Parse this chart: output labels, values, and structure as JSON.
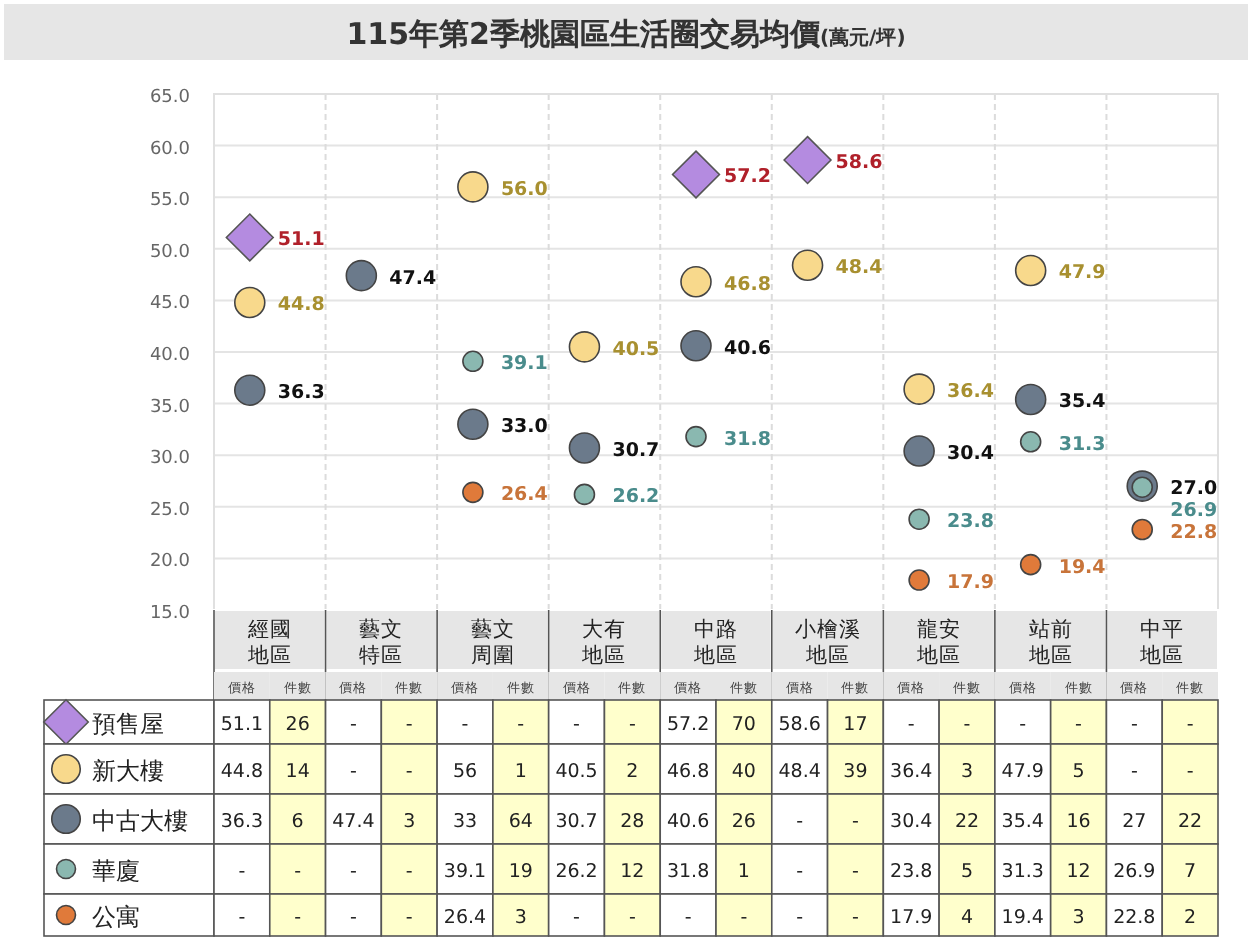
{
  "chart_data": [
    {
      "type": "scatter",
      "title": "115年第2季桃園區生活圈交易均價",
      "subtitle": "(萬元/坪)",
      "categories": [
        "經國地區",
        "藝文特區",
        "藝文周圍",
        "大有地區",
        "中路地區",
        "小檜溪地區",
        "龍安地區",
        "站前地區",
        "中平地區"
      ],
      "series": [
        {
          "color": "#b48be0",
          "marker": "diamond",
          "values": [
            51.1,
            null,
            null,
            null,
            57.2,
            58.6,
            null,
            null,
            null
          ],
          "value_labels": [
            "51.1",
            null,
            null,
            null,
            "57.2",
            "58.6",
            null,
            null,
            null
          ]
        },
        {
          "color": "#f8d98c",
          "marker": "circle",
          "values": [
            44.8,
            null,
            56.0,
            40.5,
            46.8,
            48.4,
            36.4,
            47.9,
            null
          ],
          "value_labels": [
            "44.8",
            null,
            "56.0",
            "40.5",
            "46.8",
            "48.4",
            "36.4",
            "47.9",
            null
          ]
        },
        {
          "color": "#6b7a8b",
          "marker": "circle",
          "values": [
            36.3,
            47.4,
            33.0,
            30.7,
            40.6,
            null,
            30.4,
            35.4,
            27.0
          ],
          "value_labels": [
            "36.3",
            "47.4",
            "33.0",
            "30.7",
            "40.6",
            null,
            "30.4",
            "35.4",
            "27.0"
          ]
        },
        {
          "color": "#8ab8b0",
          "marker": "circle",
          "values": [
            null,
            null,
            39.1,
            26.2,
            31.8,
            null,
            23.8,
            31.3,
            26.9
          ],
          "value_labels": [
            null,
            null,
            "39.1",
            "26.2",
            "31.8",
            null,
            "23.8",
            "31.3",
            "26.9"
          ]
        },
        {
          "color": "#e07a3a",
          "marker": "circle",
          "values": [
            null,
            null,
            26.4,
            null,
            null,
            null,
            17.9,
            19.4,
            22.8
          ],
          "value_labels": [
            null,
            null,
            "26.4",
            null,
            null,
            null,
            "17.9",
            "19.4",
            "22.8"
          ]
        }
      ],
      "ylim": [
        15,
        65
      ],
      "yticks": [
        {
          "value": 15,
          "label": "15.0"
        },
        {
          "value": 20,
          "label": "20.0"
        },
        {
          "value": 25,
          "label": "25.0"
        },
        {
          "value": 30,
          "label": "30.0"
        },
        {
          "value": 35,
          "label": "35.0"
        },
        {
          "value": 40,
          "label": "40.0"
        },
        {
          "value": 45,
          "label": "45.0"
        },
        {
          "value": 50,
          "label": "50.0"
        },
        {
          "value": 55,
          "label": "55.0"
        },
        {
          "value": 60,
          "label": "60.0"
        },
        {
          "value": 65,
          "label": "65.0"
        }
      ],
      "grid": true
    },
    {
      "type": "other",
      "y_categories": [
        "預售屋",
        "新大樓",
        "中古大樓",
        "華廈",
        "公寓"
      ],
      "categories": [
        "價格",
        "件數",
        "價格",
        "件數",
        "價格",
        "件數",
        "價格",
        "件數",
        "價格",
        "件數",
        "價格",
        "件數",
        "價格",
        "件數",
        "價格",
        "件數",
        "價格",
        "件數"
      ],
      "cell_labels": [
        [
          "51.1",
          "26",
          "-",
          "-",
          "-",
          "-",
          "-",
          "-",
          "57.2",
          "70",
          "58.6",
          "17",
          "-",
          "-",
          "-",
          "-",
          "-",
          "-"
        ],
        [
          "44.8",
          "14",
          "-",
          "-",
          "56",
          "1",
          "40.5",
          "2",
          "46.8",
          "40",
          "48.4",
          "39",
          "36.4",
          "3",
          "47.9",
          "5",
          "-",
          "-"
        ],
        [
          "36.3",
          "6",
          "47.4",
          "3",
          "33",
          "64",
          "30.7",
          "28",
          "40.6",
          "26",
          "-",
          "-",
          "30.4",
          "22",
          "35.4",
          "16",
          "27",
          "22"
        ],
        [
          "-",
          "-",
          "-",
          "-",
          "39.1",
          "19",
          "26.2",
          "12",
          "31.8",
          "1",
          "-",
          "-",
          "23.8",
          "5",
          "31.3",
          "12",
          "26.9",
          "7"
        ],
        [
          "-",
          "-",
          "-",
          "-",
          "26.4",
          "3",
          "-",
          "-",
          "-",
          "-",
          "-",
          "-",
          "17.9",
          "4",
          "19.4",
          "3",
          "22.8",
          "2"
        ]
      ]
    }
  ]
}
